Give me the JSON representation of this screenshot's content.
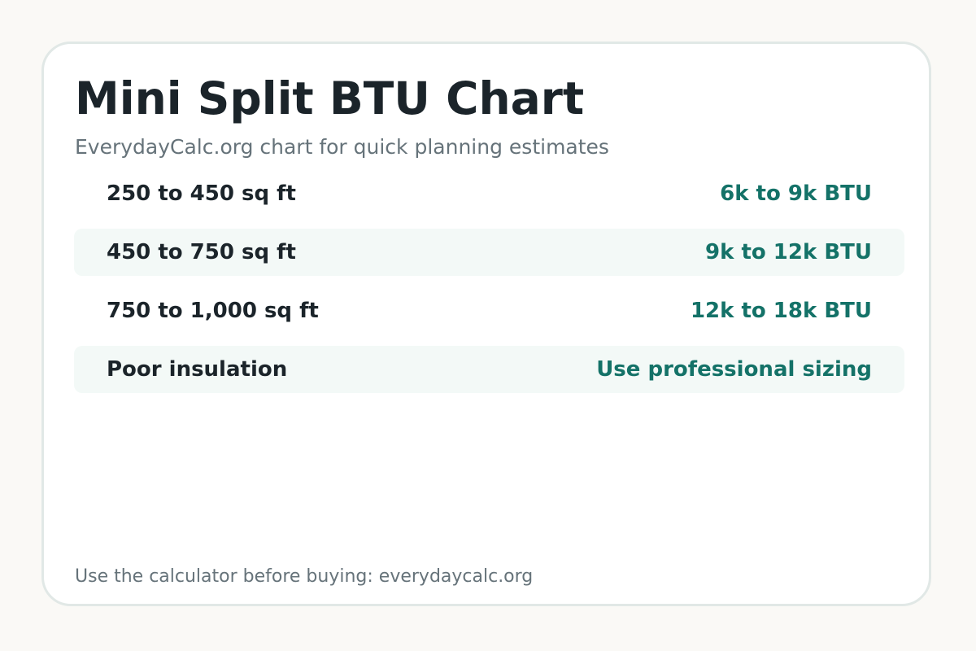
{
  "card": {
    "title": "Mini Split BTU Chart",
    "subtitle": "EverydayCalc.org chart for quick planning estimates",
    "rows": [
      {
        "label": "250 to 450 sq ft",
        "value": "6k to 9k BTU"
      },
      {
        "label": "450 to 750 sq ft",
        "value": "9k to 12k BTU"
      },
      {
        "label": "750 to 1,000 sq ft",
        "value": "12k to 18k BTU"
      },
      {
        "label": "Poor insulation",
        "value": "Use professional sizing"
      }
    ],
    "footer": "Use the calculator before buying: everydaycalc.org"
  },
  "colors": {
    "background": "#faf9f6",
    "card": "#ffffff",
    "card_border": "#e1e8e6",
    "title_text": "#1b242a",
    "muted_text": "#66737a",
    "accent": "#147268",
    "row_alt": "#f3f9f7"
  }
}
